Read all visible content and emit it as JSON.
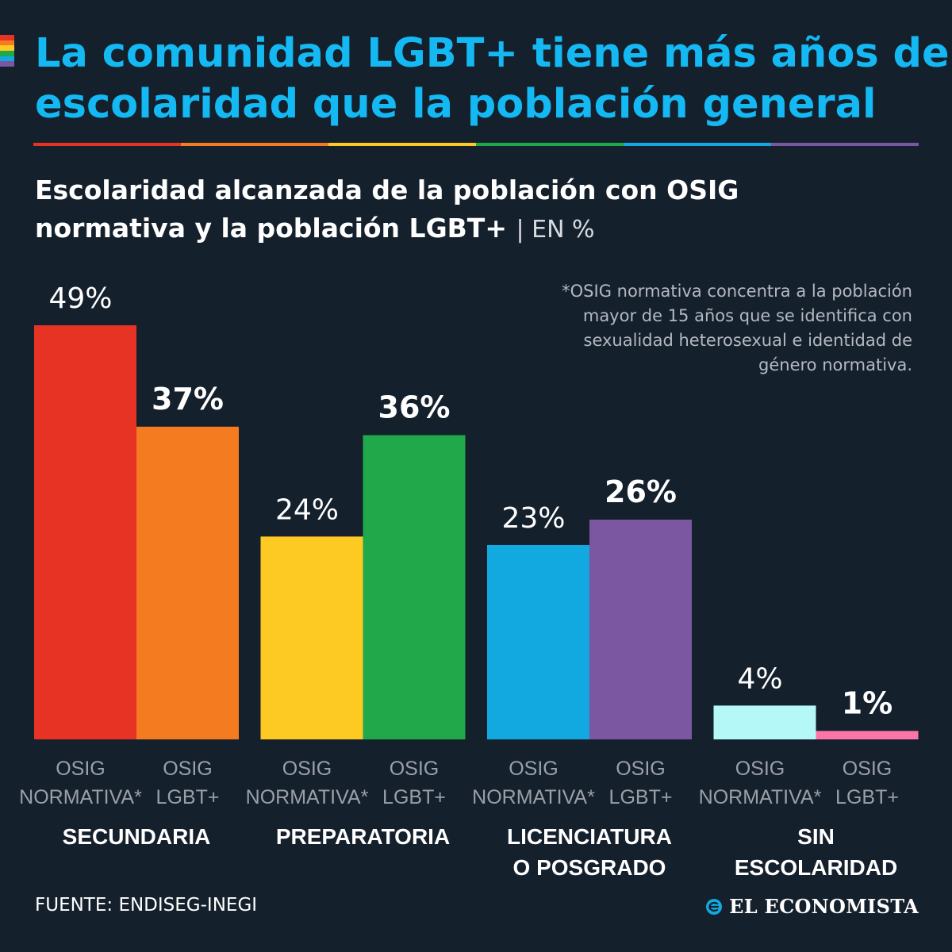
{
  "header": {
    "title_line1": "La comunidad LGBT+ tiene más años de",
    "title_line2": "escolaridad que la población general",
    "subtitle_line1": "Escolaridad alcanzada de la población con OSIG",
    "subtitle_line2": "normativa y la población LGBT+",
    "unit": "| EN %"
  },
  "footnote": "*OSIG normativa concentra a la población\nmayor de 15 años que se identifica con\nsexualidad heterosexual e identidad de\ngénero normativa.",
  "footer": {
    "source": "FUENTE: ENDISEG-INEGI",
    "brand": "EL ECONOMISTA"
  },
  "colors": {
    "background": "#15202d",
    "title": "#14b8f2",
    "rainbow": [
      "#e63323",
      "#f47b20",
      "#fdc923",
      "#21a84a",
      "#12a8e0",
      "#7b56a1"
    ]
  },
  "chart_data": {
    "type": "bar",
    "title": "Escolaridad alcanzada de la población con OSIG normativa y la población LGBT+",
    "ylabel": "EN %",
    "ylim": [
      0,
      49
    ],
    "grid": false,
    "categories": [
      "SECUNDARIA",
      "PREPARATORIA",
      "LICENCIATURA O POSGRADO",
      "SIN ESCOLARIDAD"
    ],
    "category_lines": [
      [
        "SECUNDARIA"
      ],
      [
        "PREPARATORIA"
      ],
      [
        "LICENCIATURA",
        "O POSGRADO"
      ],
      [
        "SIN",
        "ESCOLARIDAD"
      ]
    ],
    "series": [
      {
        "name": "OSIG NORMATIVA*",
        "label_lines": [
          "OSIG",
          "NORMATIVA*"
        ],
        "values": [
          49,
          24,
          23,
          4
        ]
      },
      {
        "name": "OSIG LGBT+",
        "label_lines": [
          "OSIG",
          "LGBT+"
        ],
        "values": [
          37,
          36,
          26,
          1
        ]
      }
    ],
    "value_labels": [
      [
        "49%",
        "37%"
      ],
      [
        "24%",
        "36%"
      ],
      [
        "23%",
        "26%"
      ],
      [
        "4%",
        "1%"
      ]
    ],
    "bar_colors": [
      [
        "#e63323",
        "#f47b20"
      ],
      [
        "#fdc923",
        "#21a84a"
      ],
      [
        "#12a8e0",
        "#7b56a1"
      ],
      [
        "#b5f8f8",
        "#fb75a9"
      ]
    ]
  }
}
